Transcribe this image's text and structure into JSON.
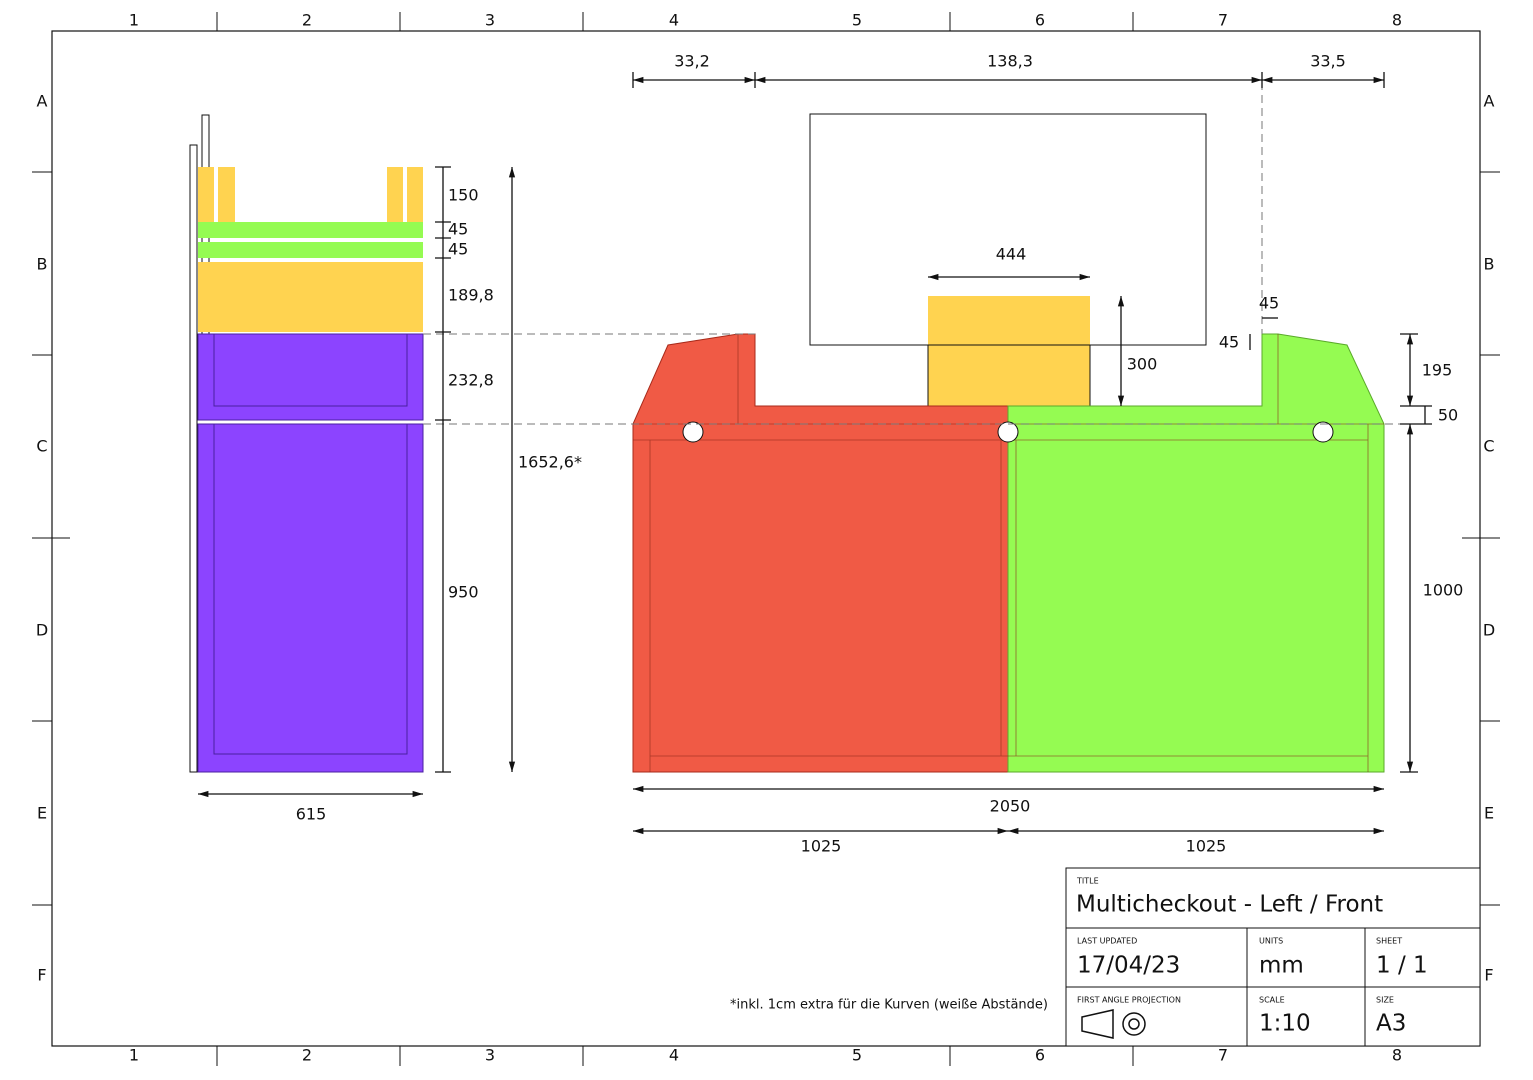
{
  "grid": {
    "columns": [
      "1",
      "2",
      "3",
      "4",
      "5",
      "6",
      "7",
      "8"
    ],
    "rows": [
      "A",
      "B",
      "C",
      "D",
      "E",
      "F"
    ]
  },
  "side_view": {
    "dimensions": [
      "150",
      "45",
      "45",
      "189,8",
      "232,8",
      "950",
      "1652,6*",
      "615"
    ]
  },
  "front_view": {
    "dimensions": [
      "33,2",
      "138,3",
      "33,5",
      "444",
      "300",
      "45",
      "45",
      "195",
      "50",
      "1000",
      "2050",
      "1025",
      "1025"
    ]
  },
  "note": "*inkl. 1cm extra für die Kurven (weiße Abstände)",
  "title_block": {
    "title_label": "TITLE",
    "title": "Multicheckout - Left / Front",
    "last_updated_label": "LAST UPDATED",
    "last_updated": "17/04/23",
    "units_label": "UNITS",
    "units": "mm",
    "sheet_label": "SHEET",
    "sheet": "1 / 1",
    "projection_label": "FIRST ANGLE PROJECTION",
    "scale_label": "SCALE",
    "scale": "1:10",
    "size_label": "SIZE",
    "size": "A3"
  }
}
